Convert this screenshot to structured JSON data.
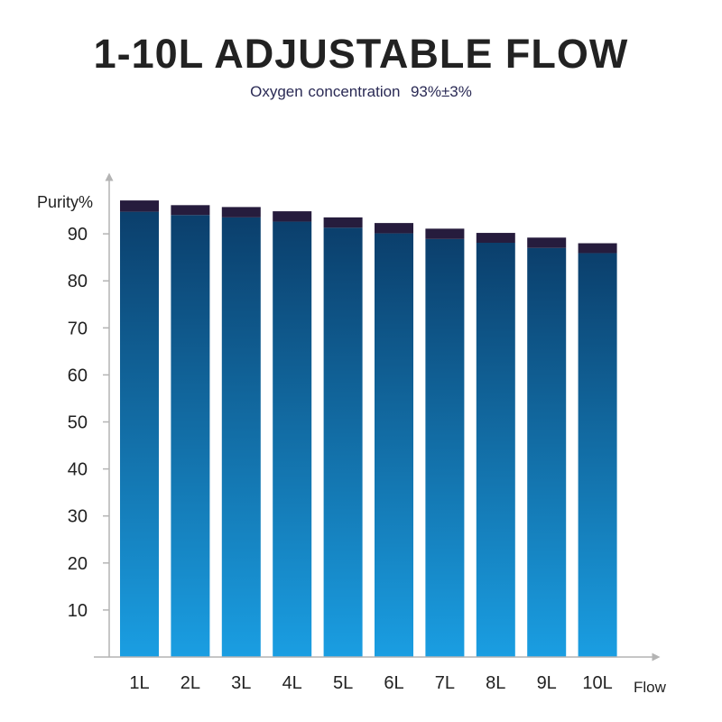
{
  "chart_data": {
    "type": "bar",
    "title": "1-10L ADJUSTABLE FLOW",
    "subtitle": "Oxygen concentration  93%±3%",
    "ylabel": "Purity%",
    "xlabel": "Flow",
    "ylim": [
      0,
      100
    ],
    "y_ticks": [
      10,
      20,
      30,
      40,
      50,
      60,
      70,
      80,
      90
    ],
    "categories": [
      "1L",
      "2L",
      "3L",
      "4L",
      "5L",
      "6L",
      "7L",
      "8L",
      "9L",
      "10L"
    ],
    "series": [
      {
        "values": [
          94.7,
          94.0,
          93.5,
          92.6,
          91.3,
          90.1,
          88.9,
          88.1,
          87.0,
          85.9
        ]
      },
      {
        "values": [
          2.4,
          2.1,
          2.2,
          2.2,
          2.2,
          2.2,
          2.2,
          2.1,
          2.2,
          2.1
        ]
      }
    ],
    "colors": {
      "bar_top": "#0b3f6c",
      "bar_bottom": "#1a9ee2",
      "cap": "#261c3d",
      "axis": "#b4b4b4"
    },
    "grid": false
  }
}
